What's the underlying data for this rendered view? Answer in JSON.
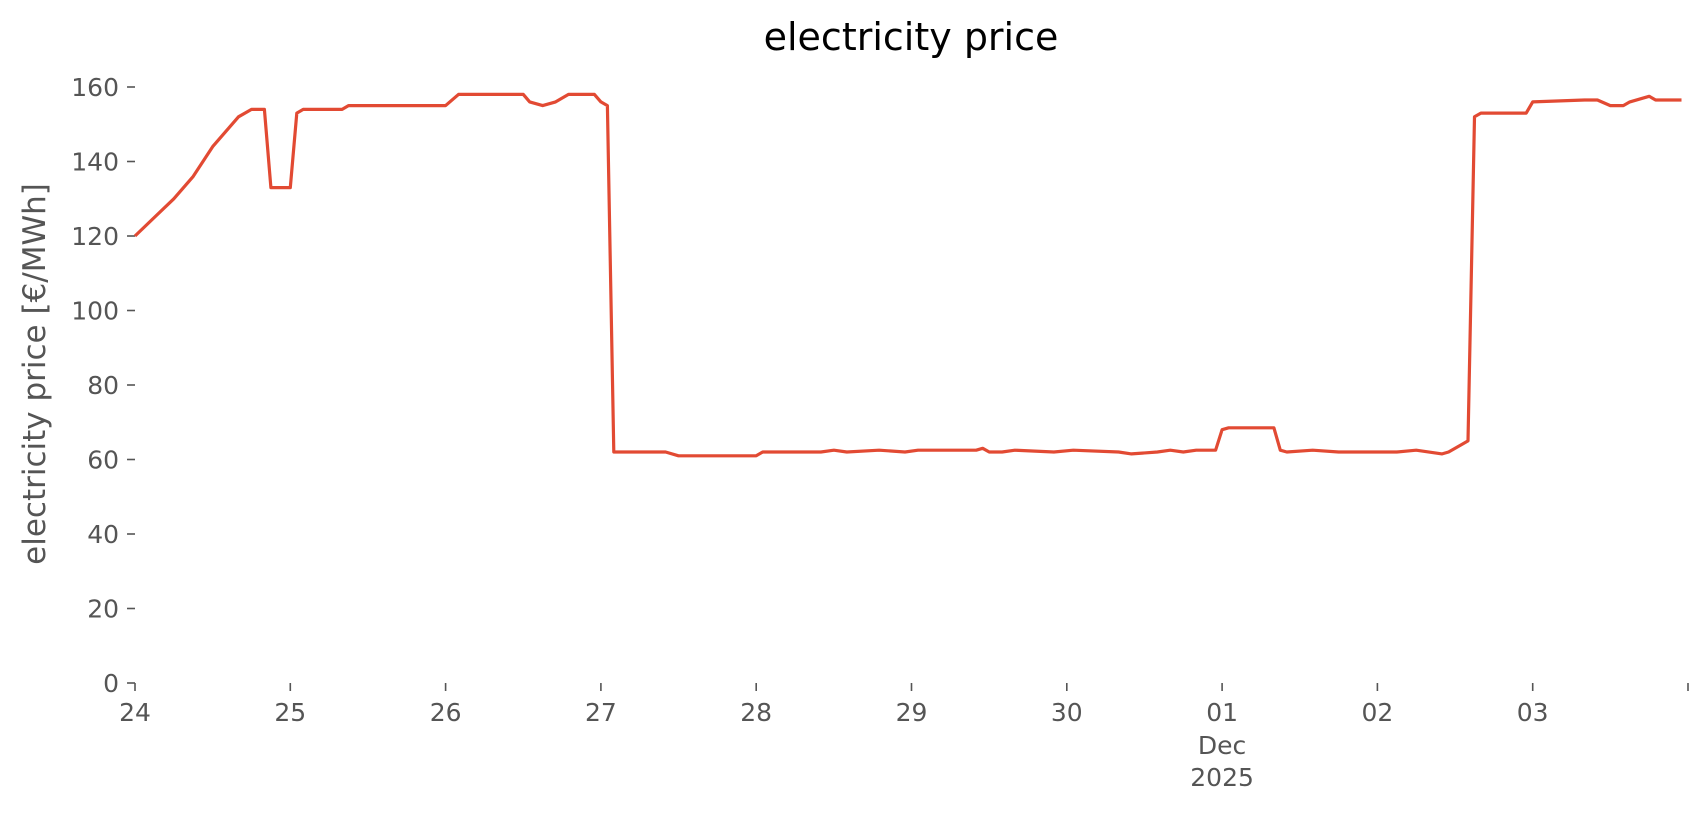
{
  "chart_data": {
    "type": "line",
    "title": "electricity price",
    "xlabel": "",
    "ylabel": "electricity price [€/MWh]",
    "ylim": [
      0,
      160
    ],
    "yticks": [
      0,
      20,
      40,
      60,
      80,
      100,
      120,
      140,
      160
    ],
    "xlim": [
      "2025-11-24 00:00",
      "2025-12-03 23:00"
    ],
    "grid": false,
    "colors": {
      "line": "#E24A33",
      "tick_text": "#555555",
      "title": "#000000"
    },
    "x_ticks": [
      {
        "x": "2025-11-24",
        "label": "24",
        "sub": []
      },
      {
        "x": "2025-11-25",
        "label": "25",
        "sub": []
      },
      {
        "x": "2025-11-26",
        "label": "26",
        "sub": []
      },
      {
        "x": "2025-11-27",
        "label": "27",
        "sub": []
      },
      {
        "x": "2025-11-28",
        "label": "28",
        "sub": []
      },
      {
        "x": "2025-11-29",
        "label": "29",
        "sub": []
      },
      {
        "x": "2025-11-30",
        "label": "30",
        "sub": []
      },
      {
        "x": "2025-12-01",
        "label": "01",
        "sub": [
          "Dec",
          "2025"
        ]
      },
      {
        "x": "2025-12-02",
        "label": "02",
        "sub": []
      },
      {
        "x": "2025-12-03",
        "label": "03",
        "sub": []
      },
      {
        "x": "2025-12-04",
        "label": "",
        "sub": []
      }
    ],
    "series": [
      {
        "values": [
          [
            "2025-11-24 00:00",
            120
          ],
          [
            "2025-11-24 03:00",
            125
          ],
          [
            "2025-11-24 06:00",
            130
          ],
          [
            "2025-11-24 09:00",
            136
          ],
          [
            "2025-11-24 12:00",
            144
          ],
          [
            "2025-11-24 14:00",
            148
          ],
          [
            "2025-11-24 16:00",
            152
          ],
          [
            "2025-11-24 18:00",
            154
          ],
          [
            "2025-11-24 20:00",
            154
          ],
          [
            "2025-11-24 21:00",
            133
          ],
          [
            "2025-11-25 00:00",
            133
          ],
          [
            "2025-11-25 01:00",
            153
          ],
          [
            "2025-11-25 02:00",
            154
          ],
          [
            "2025-11-25 08:00",
            154
          ],
          [
            "2025-11-25 09:00",
            155
          ],
          [
            "2025-11-26 00:00",
            155
          ],
          [
            "2025-11-26 02:00",
            158
          ],
          [
            "2025-11-26 12:00",
            158
          ],
          [
            "2025-11-26 13:00",
            156
          ],
          [
            "2025-11-26 15:00",
            155
          ],
          [
            "2025-11-26 17:00",
            156
          ],
          [
            "2025-11-26 19:00",
            158
          ],
          [
            "2025-11-26 23:00",
            158
          ],
          [
            "2025-11-27 00:00",
            156
          ],
          [
            "2025-11-27 01:00",
            155
          ],
          [
            "2025-11-27 02:00",
            62
          ],
          [
            "2025-11-27 10:00",
            62
          ],
          [
            "2025-11-27 12:00",
            61
          ],
          [
            "2025-11-28 00:00",
            61
          ],
          [
            "2025-11-28 01:00",
            62
          ],
          [
            "2025-11-28 10:00",
            62
          ],
          [
            "2025-11-28 12:00",
            62.5
          ],
          [
            "2025-11-28 14:00",
            62
          ],
          [
            "2025-11-28 19:00",
            62.5
          ],
          [
            "2025-11-28 23:00",
            62
          ],
          [
            "2025-11-29 01:00",
            62.5
          ],
          [
            "2025-11-29 10:00",
            62.5
          ],
          [
            "2025-11-29 11:00",
            63
          ],
          [
            "2025-11-29 12:00",
            62
          ],
          [
            "2025-11-29 14:00",
            62
          ],
          [
            "2025-11-29 16:00",
            62.5
          ],
          [
            "2025-11-29 22:00",
            62
          ],
          [
            "2025-11-30 01:00",
            62.5
          ],
          [
            "2025-11-30 08:00",
            62
          ],
          [
            "2025-11-30 10:00",
            61.5
          ],
          [
            "2025-11-30 14:00",
            62
          ],
          [
            "2025-11-30 16:00",
            62.5
          ],
          [
            "2025-11-30 18:00",
            62
          ],
          [
            "2025-11-30 20:00",
            62.5
          ],
          [
            "2025-11-30 23:00",
            62.5
          ],
          [
            "2025-12-01 00:00",
            68
          ],
          [
            "2025-12-01 01:00",
            68.5
          ],
          [
            "2025-12-01 08:00",
            68.5
          ],
          [
            "2025-12-01 09:00",
            62.5
          ],
          [
            "2025-12-01 10:00",
            62
          ],
          [
            "2025-12-01 14:00",
            62.5
          ],
          [
            "2025-12-01 18:00",
            62
          ],
          [
            "2025-12-02 03:00",
            62
          ],
          [
            "2025-12-02 06:00",
            62.5
          ],
          [
            "2025-12-02 10:00",
            61.5
          ],
          [
            "2025-12-02 11:00",
            62
          ],
          [
            "2025-12-02 13:00",
            64
          ],
          [
            "2025-12-02 14:00",
            65
          ],
          [
            "2025-12-02 15:00",
            152
          ],
          [
            "2025-12-02 16:00",
            153
          ],
          [
            "2025-12-02 23:00",
            153
          ],
          [
            "2025-12-03 00:00",
            156
          ],
          [
            "2025-12-03 08:00",
            156.5
          ],
          [
            "2025-12-03 10:00",
            156.5
          ],
          [
            "2025-12-03 12:00",
            155
          ],
          [
            "2025-12-03 14:00",
            155
          ],
          [
            "2025-12-03 15:00",
            156
          ],
          [
            "2025-12-03 17:00",
            157
          ],
          [
            "2025-12-03 18:00",
            157.5
          ],
          [
            "2025-12-03 19:00",
            156.5
          ],
          [
            "2025-12-03 20:00",
            156.5
          ],
          [
            "2025-12-03 23:00",
            156.5
          ]
        ]
      }
    ]
  }
}
